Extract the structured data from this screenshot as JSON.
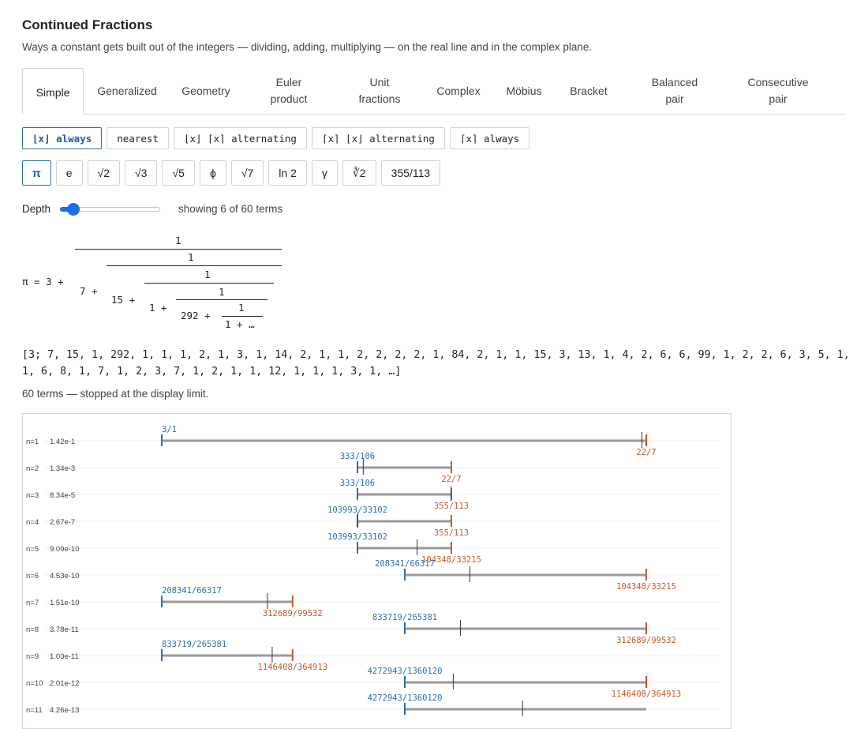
{
  "page": {
    "title": "Continued Fractions",
    "subtitle": "Ways a constant gets built out of the integers — dividing, adding, multiplying — on the real line and in the complex plane."
  },
  "tabs": [
    {
      "label": "Simple",
      "active": true
    },
    {
      "label": "Generalized"
    },
    {
      "label": "Geometry"
    },
    {
      "label": "Euler\nproduct"
    },
    {
      "label": "Unit\nfractions"
    },
    {
      "label": "Complex"
    },
    {
      "label": "Möbius"
    },
    {
      "label": "Bracket"
    },
    {
      "label": "Balanced\npair"
    },
    {
      "label": "Consecutive\npair"
    }
  ],
  "modes": [
    {
      "label": "⌊x⌋ always",
      "active": true
    },
    {
      "label": "nearest"
    },
    {
      "label": "⌊x⌋ ⌈x⌉ alternating"
    },
    {
      "label": "⌈x⌉ ⌊x⌋ alternating"
    },
    {
      "label": "⌈x⌉ always"
    }
  ],
  "constants": [
    {
      "label": "π",
      "active": true
    },
    {
      "label": "e"
    },
    {
      "label": "√2"
    },
    {
      "label": "√3"
    },
    {
      "label": "√5"
    },
    {
      "label": "ϕ"
    },
    {
      "label": "√7"
    },
    {
      "label": "ln 2"
    },
    {
      "label": "γ"
    },
    {
      "label": "∛2"
    },
    {
      "label": "355/113"
    }
  ],
  "depth": {
    "label": "Depth",
    "value": 6,
    "max": 60,
    "showing_text": "showing 6 of 60 terms"
  },
  "fraction": {
    "lhs": "π = 3 +",
    "numerator": "1",
    "levels": [
      "7 +",
      "15 +",
      "1 +",
      "292 +"
    ],
    "tail": "1 + …"
  },
  "sequence_text": "[3; 7, 15, 1, 292, 1, 1, 1, 2, 1, 3, 1, 14, 2, 1, 1, 2, 2, 2, 2, 1, 84, 2, 1, 1, 15, 3, 13, 1, 4, 2, 6, 6, 99, 1, 2, 2, 6, 3, 5, 1, 1, 6, 8, 1, 7, 1, 2, 3, 7, 1, 2, 1, 1, 12, 1, 1, 1, 3, 1, …]",
  "note": "60 terms — stopped at the display limit.",
  "colors": {
    "lower": "#2f6fb0",
    "upper": "#c8582a",
    "bar": "#9a9a9a",
    "true": "#333333",
    "accent": "#1b6fe0"
  },
  "chart_data": {
    "type": "interval-bracket",
    "rows": [
      {
        "label": "n=1",
        "err": "1.42e-1",
        "lower": "3/1",
        "upper": "22/7"
      },
      {
        "label": "n=2",
        "err": "1.34e-3",
        "lower": "333/106",
        "upper": "22/7"
      },
      {
        "label": "n=3",
        "err": "8.34e-5",
        "lower": "333/106",
        "upper": "355/113"
      },
      {
        "label": "n=4",
        "err": "2.67e-7",
        "lower": "103993/33102",
        "upper": "355/113"
      },
      {
        "label": "n=5",
        "err": "9.09e-10",
        "lower": "103993/33102",
        "upper": "104348/33215"
      },
      {
        "label": "n=6",
        "err": "4.53e-10",
        "lower": "208341/66317",
        "upper": "104348/33215"
      },
      {
        "label": "n=7",
        "err": "1.51e-10",
        "lower": "208341/66317",
        "upper": "312689/99532"
      },
      {
        "label": "n=8",
        "err": "3.78e-11",
        "lower": "833719/265381",
        "upper": "312689/99532"
      },
      {
        "label": "n=9",
        "err": "1.03e-11",
        "lower": "833719/265381",
        "upper": "1146408/364913"
      },
      {
        "label": "n=10",
        "err": "2.01e-12",
        "lower": "4272943/1360120",
        "upper": "1146408/364913"
      },
      {
        "label": "n=11",
        "err": "4.26e-13",
        "lower": "4272943/1360120",
        "upper": ""
      }
    ]
  }
}
